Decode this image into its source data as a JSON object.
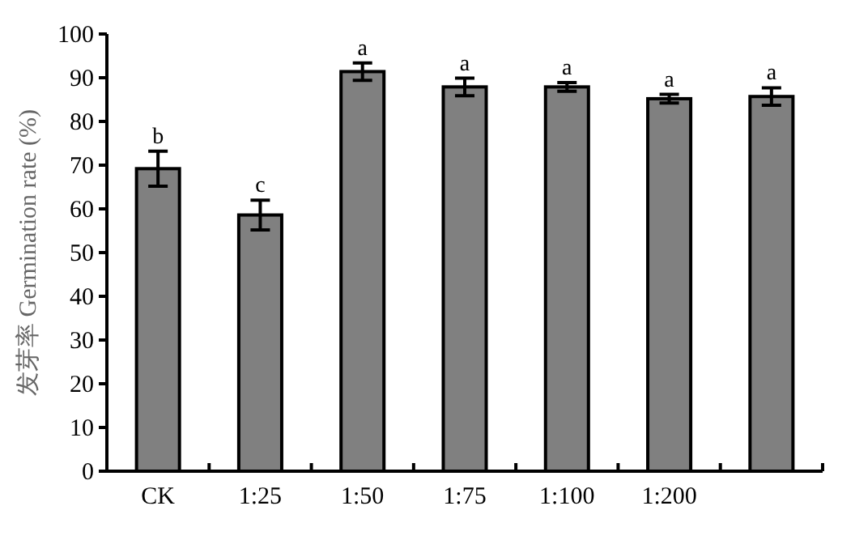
{
  "chart_data": {
    "type": "bar",
    "ylabel": "发芽率 Germination rate (%)",
    "categories": [
      "CK",
      "1:25",
      "1:50",
      "1:75",
      "1:100",
      "1:200",
      null
    ],
    "values": [
      69.2,
      58.6,
      91.4,
      87.9,
      87.9,
      85.2,
      85.7
    ],
    "errors": [
      4,
      3.4,
      2,
      2,
      1,
      1,
      2
    ],
    "color": "#808080",
    "ylim": [
      0,
      100
    ],
    "yticks": [
      0,
      10,
      20,
      30,
      40,
      50,
      60,
      70,
      80,
      90,
      100
    ],
    "grid": false,
    "annotations": [
      {
        "text": "b",
        "x": "CK",
        "y": 73.2
      },
      {
        "text": "c",
        "x": "1:25",
        "y": 62
      },
      {
        "text": "a",
        "x": "1:50",
        "y": 93.4
      },
      {
        "text": "a",
        "x": "1:75",
        "y": 89.9
      },
      {
        "text": "a",
        "x": "1:100",
        "y": 88.9
      },
      {
        "text": "a",
        "x": "1:200",
        "y": 86.2
      },
      {
        "text": "a",
        "y": 87.7
      }
    ]
  }
}
